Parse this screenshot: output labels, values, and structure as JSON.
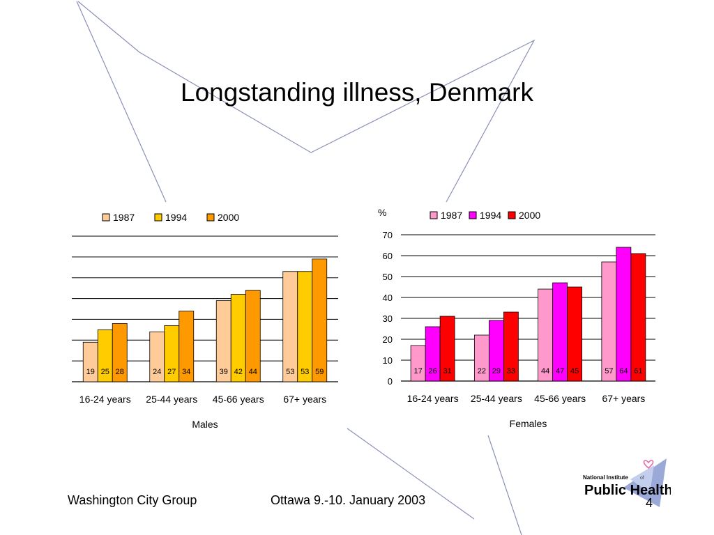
{
  "slide": {
    "title": "Longstanding illness, Denmark",
    "footer_left": "Washington City Group",
    "footer_center": "Ottawa 9.-10. January 2003",
    "page_number": "4",
    "logo_text_top": "National Institute",
    "logo_text_of": "of",
    "logo_text_main": "Public Health"
  },
  "chart_data": [
    {
      "type": "bar",
      "title": "",
      "xlabel": "Males",
      "ylabel": "",
      "ylim": [
        0,
        70
      ],
      "grid": true,
      "legend": "top",
      "categories": [
        "16-24 years",
        "25-44 years",
        "45-66 years",
        "67+ years"
      ],
      "series": [
        {
          "name": "1987",
          "values": [
            19,
            24,
            39,
            53
          ],
          "color": "#FFCC99"
        },
        {
          "name": "1994",
          "values": [
            25,
            27,
            42,
            53
          ],
          "color": "#FFCC00"
        },
        {
          "name": "2000",
          "values": [
            28,
            34,
            44,
            59
          ],
          "color": "#FF9900"
        }
      ]
    },
    {
      "type": "bar",
      "title": "",
      "xlabel": "Females",
      "ylabel": "%",
      "ylim": [
        0,
        70
      ],
      "yticks": [
        "0",
        "10",
        "20",
        "30",
        "40",
        "50",
        "60",
        "70"
      ],
      "grid": true,
      "legend": "top",
      "categories": [
        "16-24 years",
        "25-44 years",
        "45-66 years",
        "67+ years"
      ],
      "series": [
        {
          "name": "1987",
          "values": [
            17,
            22,
            44,
            57
          ],
          "color": "#FF99CC"
        },
        {
          "name": "1994",
          "values": [
            26,
            29,
            47,
            64
          ],
          "color": "#FF00FF"
        },
        {
          "name": "2000",
          "values": [
            31,
            33,
            45,
            61
          ],
          "color": "#FF0000"
        }
      ]
    }
  ]
}
